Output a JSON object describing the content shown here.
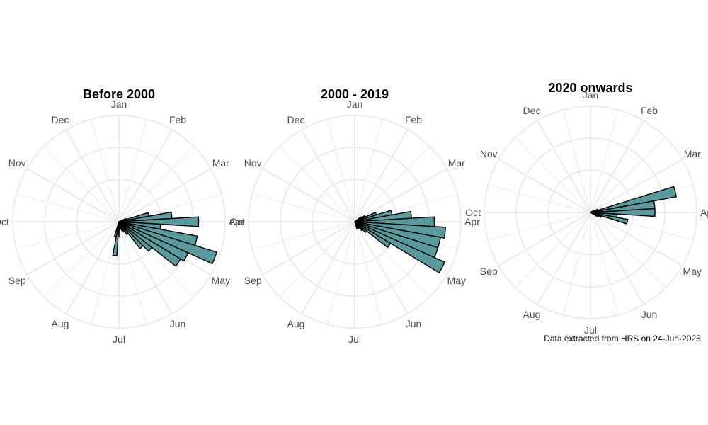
{
  "caption": "Data extracted from HRS on 24-Jun-2025.",
  "colors": {
    "bar_fill": "#5b9a9c",
    "bar_stroke": "#000000",
    "grid": "#ebebeb",
    "label": "#4d4d4d"
  },
  "chart_data": [
    {
      "type": "bar",
      "coordinate_system": "polar",
      "title": "Before 2000",
      "theta_unit": "week_of_year",
      "month_labels": [
        "Jan",
        "Feb",
        "Mar",
        "Apr",
        "May",
        "Jun",
        "Jul",
        "Aug",
        "Sep",
        "Oct",
        "Nov",
        "Dec"
      ],
      "grid": true,
      "x": [
        10,
        11,
        12,
        13,
        14,
        15,
        16,
        17,
        18,
        19,
        20,
        21,
        22,
        23,
        24,
        25,
        26,
        27,
        28
      ],
      "values": [
        0.1,
        0.4,
        0.7,
        1.05,
        0.55,
        1.05,
        1.35,
        1.0,
        0.95,
        0.55,
        0.45,
        0.2,
        0.15,
        0.12,
        0.1,
        0.1,
        0.2,
        0.45,
        0.2
      ],
      "ylim": [
        0,
        1.4
      ]
    },
    {
      "type": "bar",
      "coordinate_system": "polar",
      "title": "2000 - 2019",
      "theta_unit": "week_of_year",
      "month_labels": [
        "Jan",
        "Feb",
        "Mar",
        "Apr",
        "May",
        "Jun",
        "Jul",
        "Aug",
        "Sep",
        "Oct",
        "Nov",
        "Dec"
      ],
      "grid": true,
      "x": [
        8,
        9,
        10,
        11,
        12,
        13,
        14,
        15,
        16,
        17,
        18,
        19,
        20,
        21,
        22,
        23
      ],
      "values": [
        0.1,
        0.15,
        0.3,
        0.5,
        0.75,
        1.05,
        1.2,
        1.15,
        1.15,
        1.3,
        0.55,
        0.2,
        0.15,
        0.1,
        0.1,
        0.1
      ],
      "ylim": [
        0,
        1.4
      ]
    },
    {
      "type": "bar",
      "coordinate_system": "polar",
      "title": "2020 onwards",
      "theta_unit": "week_of_year",
      "month_labels": [
        "Jan",
        "Feb",
        "Mar",
        "Apr",
        "May",
        "Jun",
        "Jul",
        "Aug",
        "Sep",
        "Oct",
        "Nov",
        "Dec"
      ],
      "grid": true,
      "x": [
        8,
        9,
        10,
        11,
        12,
        13,
        14,
        15,
        16,
        17
      ],
      "values": [
        0.05,
        0.05,
        0.1,
        1.15,
        0.85,
        0.85,
        0.35,
        0.5,
        0.15,
        0.1
      ],
      "ylim": [
        0,
        1.4
      ]
    }
  ]
}
